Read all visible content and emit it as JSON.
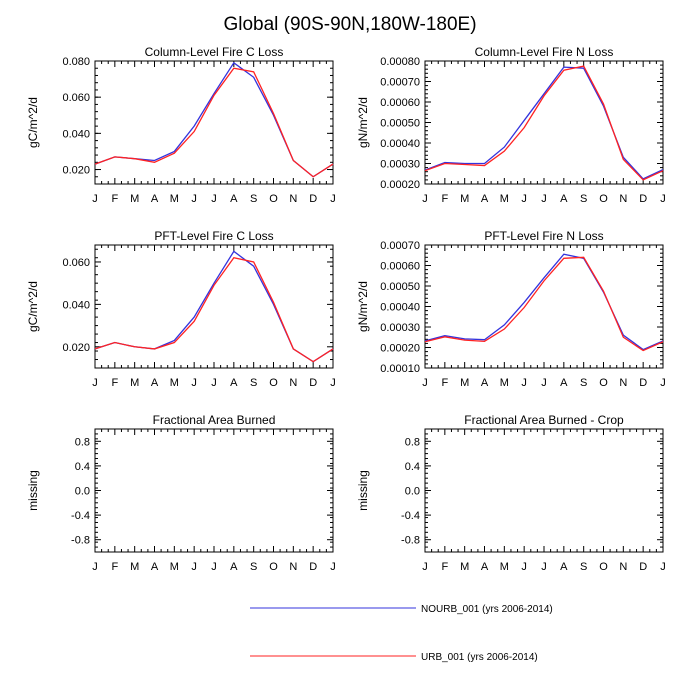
{
  "title": "Global (90S-90N,180W-180E)",
  "colors": {
    "NOURB_001": "#3333dd",
    "URB_001": "#ff2222"
  },
  "months": [
    "J",
    "F",
    "M",
    "A",
    "M",
    "J",
    "J",
    "A",
    "S",
    "O",
    "N",
    "D",
    "J"
  ],
  "legend": [
    {
      "label": "NOURB_001 (yrs 2006-2014)",
      "color": "#3333dd"
    },
    {
      "label": "URB_001 (yrs 2006-2014)",
      "color": "#ff2222"
    }
  ],
  "chart_data": [
    {
      "type": "line",
      "title": "Column-Level Fire C Loss",
      "ylabel": "gC/m^2/d",
      "xlabel": "",
      "x": [
        "J",
        "F",
        "M",
        "A",
        "M",
        "J",
        "J",
        "A",
        "S",
        "O",
        "N",
        "D",
        "J"
      ],
      "xlim": [
        0,
        12
      ],
      "ylim": [
        0.012,
        0.08
      ],
      "yticks": [
        "0.020",
        "0.040",
        "0.060",
        "0.080"
      ],
      "series": [
        {
          "name": "NOURB_001 (yrs 2006-2014)",
          "values": [
            0.023,
            0.027,
            0.026,
            0.025,
            0.03,
            0.044,
            0.062,
            0.079,
            0.071,
            0.05,
            0.025,
            0.016,
            0.023
          ]
        },
        {
          "name": "URB_001 (yrs 2006-2014)",
          "values": [
            0.023,
            0.027,
            0.026,
            0.024,
            0.029,
            0.041,
            0.061,
            0.076,
            0.074,
            0.051,
            0.025,
            0.016,
            0.023
          ]
        }
      ]
    },
    {
      "type": "line",
      "title": "Column-Level Fire N Loss",
      "ylabel": "gN/m^2/d",
      "xlabel": "",
      "x": [
        "J",
        "F",
        "M",
        "A",
        "M",
        "J",
        "J",
        "A",
        "S",
        "O",
        "N",
        "D",
        "J"
      ],
      "xlim": [
        0,
        12
      ],
      "ylim": [
        0.0002,
        0.0008
      ],
      "yticks": [
        "0.00020",
        "0.00030",
        "0.00040",
        "0.00050",
        "0.00060",
        "0.00070",
        "0.00080"
      ],
      "series": [
        {
          "name": "NOURB_001 (yrs 2006-2014)",
          "values": [
            0.000268,
            0.000305,
            0.0003,
            0.0003,
            0.00038,
            0.00051,
            0.00064,
            0.00077,
            0.000765,
            0.00058,
            0.00033,
            0.000225,
            0.00027
          ]
        },
        {
          "name": "URB_001 (yrs 2006-2014)",
          "values": [
            0.000265,
            0.0003,
            0.000295,
            0.00029,
            0.00036,
            0.000475,
            0.00063,
            0.000755,
            0.000775,
            0.00059,
            0.00032,
            0.00022,
            0.000265
          ]
        }
      ]
    },
    {
      "type": "line",
      "title": "PFT-Level Fire C Loss",
      "ylabel": "gC/m^2/d",
      "xlabel": "",
      "x": [
        "J",
        "F",
        "M",
        "A",
        "M",
        "J",
        "J",
        "A",
        "S",
        "O",
        "N",
        "D",
        "J"
      ],
      "xlim": [
        0,
        12
      ],
      "ylim": [
        0.01,
        0.068
      ],
      "yticks": [
        "0.020",
        "0.040",
        "0.060"
      ],
      "series": [
        {
          "name": "NOURB_001 (yrs 2006-2014)",
          "values": [
            0.019,
            0.022,
            0.02,
            0.019,
            0.023,
            0.034,
            0.05,
            0.065,
            0.058,
            0.04,
            0.019,
            0.013,
            0.019
          ]
        },
        {
          "name": "URB_001 (yrs 2006-2014)",
          "values": [
            0.019,
            0.022,
            0.02,
            0.019,
            0.022,
            0.032,
            0.049,
            0.062,
            0.06,
            0.041,
            0.019,
            0.013,
            0.019
          ]
        }
      ]
    },
    {
      "type": "line",
      "title": "PFT-Level Fire N Loss",
      "ylabel": "gN/m^2/d",
      "xlabel": "",
      "x": [
        "J",
        "F",
        "M",
        "A",
        "M",
        "J",
        "J",
        "A",
        "S",
        "O",
        "N",
        "D",
        "J"
      ],
      "xlim": [
        0,
        12
      ],
      "ylim": [
        0.0001,
        0.0007
      ],
      "yticks": [
        "0.00010",
        "0.00020",
        "0.00030",
        "0.00040",
        "0.00050",
        "0.00060",
        "0.00070"
      ],
      "series": [
        {
          "name": "NOURB_001 (yrs 2006-2014)",
          "values": [
            0.000232,
            0.000258,
            0.000242,
            0.000238,
            0.00031,
            0.00042,
            0.00054,
            0.000655,
            0.000635,
            0.00047,
            0.00026,
            0.00019,
            0.000232
          ]
        },
        {
          "name": "URB_001 (yrs 2006-2014)",
          "values": [
            0.000228,
            0.000252,
            0.000236,
            0.00023,
            0.00029,
            0.000395,
            0.000525,
            0.000635,
            0.00064,
            0.000475,
            0.00025,
            0.000185,
            0.000228
          ]
        }
      ]
    },
    {
      "type": "line",
      "title": "Fractional Area Burned",
      "ylabel": "missing",
      "xlabel": "",
      "x": [
        "J",
        "F",
        "M",
        "A",
        "M",
        "J",
        "J",
        "A",
        "S",
        "O",
        "N",
        "D",
        "J"
      ],
      "xlim": [
        0,
        12
      ],
      "ylim": [
        -1,
        1
      ],
      "yticks": [
        "-0.8",
        "-0.4",
        "0.0",
        "0.4",
        "0.8"
      ],
      "series": []
    },
    {
      "type": "line",
      "title": "Fractional Area Burned - Crop",
      "ylabel": "missing",
      "xlabel": "",
      "x": [
        "J",
        "F",
        "M",
        "A",
        "M",
        "J",
        "J",
        "A",
        "S",
        "O",
        "N",
        "D",
        "J"
      ],
      "xlim": [
        0,
        12
      ],
      "ylim": [
        -1,
        1
      ],
      "yticks": [
        "-0.8",
        "-0.4",
        "0.0",
        "0.4",
        "0.8"
      ],
      "series": []
    }
  ]
}
